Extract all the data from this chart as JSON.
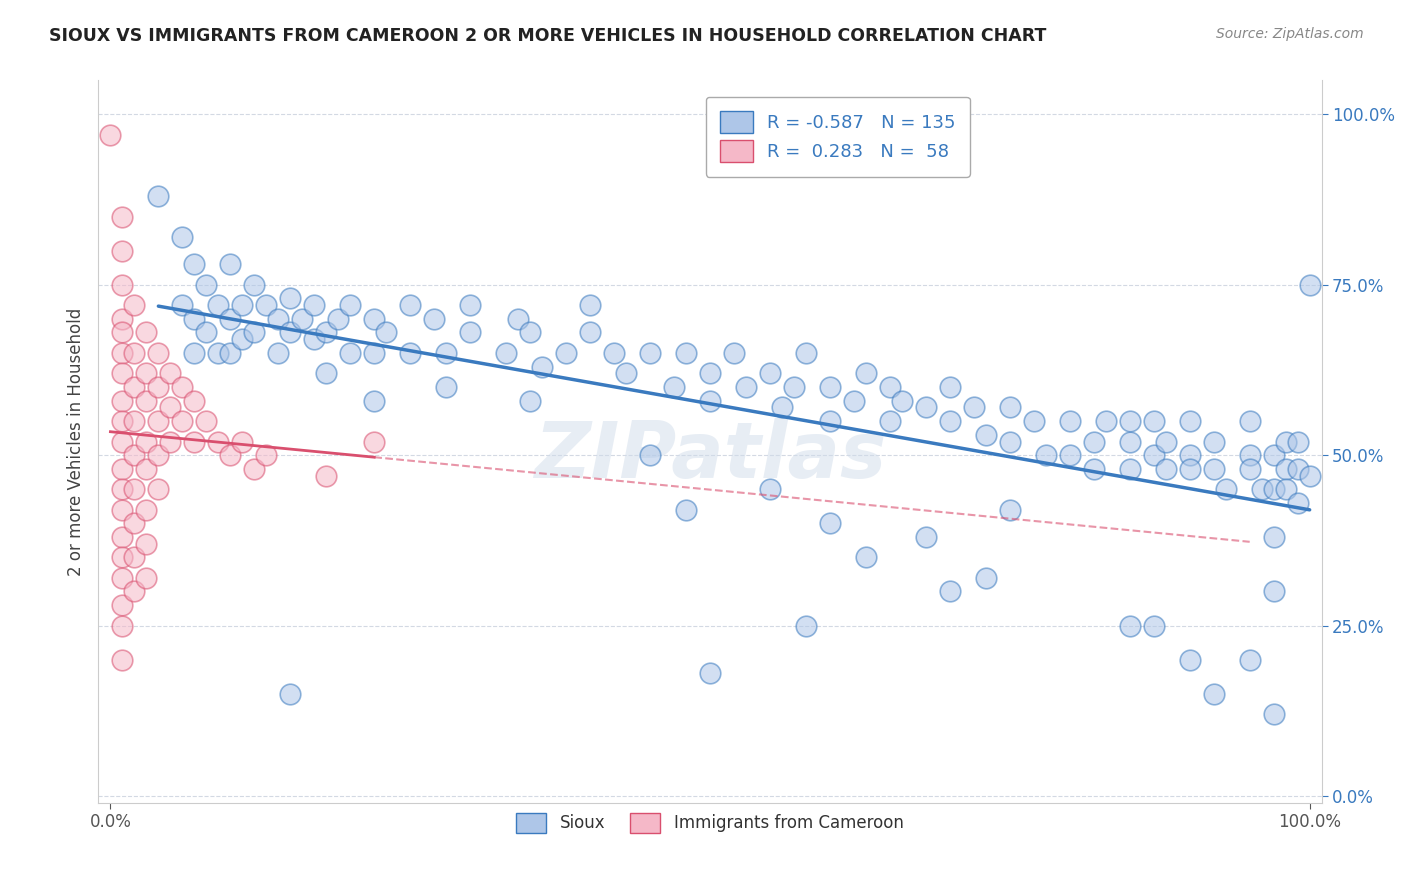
{
  "title": "SIOUX VS IMMIGRANTS FROM CAMEROON 2 OR MORE VEHICLES IN HOUSEHOLD CORRELATION CHART",
  "source": "Source: ZipAtlas.com",
  "ylabel": "2 or more Vehicles in Household",
  "legend_label1": "Sioux",
  "legend_label2": "Immigrants from Cameroon",
  "R1": -0.587,
  "N1": 135,
  "R2": 0.283,
  "N2": 58,
  "color1": "#aec6e8",
  "color2": "#f5b8c8",
  "line_color1": "#3a7abf",
  "line_color2": "#d94f6e",
  "watermark": "ZIPatlas",
  "background_color": "#ffffff",
  "sioux_points": [
    [
      0.04,
      0.88
    ],
    [
      0.06,
      0.82
    ],
    [
      0.06,
      0.72
    ],
    [
      0.07,
      0.78
    ],
    [
      0.07,
      0.7
    ],
    [
      0.07,
      0.65
    ],
    [
      0.08,
      0.75
    ],
    [
      0.08,
      0.68
    ],
    [
      0.09,
      0.72
    ],
    [
      0.09,
      0.65
    ],
    [
      0.1,
      0.78
    ],
    [
      0.1,
      0.7
    ],
    [
      0.1,
      0.65
    ],
    [
      0.11,
      0.72
    ],
    [
      0.11,
      0.67
    ],
    [
      0.12,
      0.75
    ],
    [
      0.12,
      0.68
    ],
    [
      0.13,
      0.72
    ],
    [
      0.14,
      0.7
    ],
    [
      0.14,
      0.65
    ],
    [
      0.15,
      0.73
    ],
    [
      0.15,
      0.68
    ],
    [
      0.16,
      0.7
    ],
    [
      0.17,
      0.72
    ],
    [
      0.17,
      0.67
    ],
    [
      0.18,
      0.68
    ],
    [
      0.19,
      0.7
    ],
    [
      0.2,
      0.65
    ],
    [
      0.2,
      0.72
    ],
    [
      0.22,
      0.7
    ],
    [
      0.22,
      0.65
    ],
    [
      0.23,
      0.68
    ],
    [
      0.25,
      0.72
    ],
    [
      0.25,
      0.65
    ],
    [
      0.27,
      0.7
    ],
    [
      0.28,
      0.65
    ],
    [
      0.3,
      0.68
    ],
    [
      0.3,
      0.72
    ],
    [
      0.33,
      0.65
    ],
    [
      0.34,
      0.7
    ],
    [
      0.35,
      0.68
    ],
    [
      0.36,
      0.63
    ],
    [
      0.38,
      0.65
    ],
    [
      0.4,
      0.68
    ],
    [
      0.4,
      0.72
    ],
    [
      0.42,
      0.65
    ],
    [
      0.43,
      0.62
    ],
    [
      0.45,
      0.65
    ],
    [
      0.47,
      0.6
    ],
    [
      0.48,
      0.65
    ],
    [
      0.5,
      0.62
    ],
    [
      0.5,
      0.58
    ],
    [
      0.52,
      0.65
    ],
    [
      0.53,
      0.6
    ],
    [
      0.55,
      0.62
    ],
    [
      0.56,
      0.57
    ],
    [
      0.57,
      0.6
    ],
    [
      0.58,
      0.65
    ],
    [
      0.6,
      0.6
    ],
    [
      0.6,
      0.55
    ],
    [
      0.62,
      0.58
    ],
    [
      0.63,
      0.62
    ],
    [
      0.65,
      0.6
    ],
    [
      0.65,
      0.55
    ],
    [
      0.66,
      0.58
    ],
    [
      0.68,
      0.57
    ],
    [
      0.7,
      0.6
    ],
    [
      0.7,
      0.55
    ],
    [
      0.72,
      0.57
    ],
    [
      0.73,
      0.53
    ],
    [
      0.75,
      0.57
    ],
    [
      0.75,
      0.52
    ],
    [
      0.77,
      0.55
    ],
    [
      0.78,
      0.5
    ],
    [
      0.8,
      0.55
    ],
    [
      0.8,
      0.5
    ],
    [
      0.82,
      0.52
    ],
    [
      0.82,
      0.48
    ],
    [
      0.83,
      0.55
    ],
    [
      0.85,
      0.52
    ],
    [
      0.85,
      0.48
    ],
    [
      0.85,
      0.55
    ],
    [
      0.87,
      0.5
    ],
    [
      0.87,
      0.55
    ],
    [
      0.88,
      0.52
    ],
    [
      0.88,
      0.48
    ],
    [
      0.9,
      0.5
    ],
    [
      0.9,
      0.55
    ],
    [
      0.9,
      0.48
    ],
    [
      0.92,
      0.52
    ],
    [
      0.92,
      0.48
    ],
    [
      0.93,
      0.45
    ],
    [
      0.95,
      0.5
    ],
    [
      0.95,
      0.48
    ],
    [
      0.95,
      0.55
    ],
    [
      0.96,
      0.45
    ],
    [
      0.97,
      0.5
    ],
    [
      0.97,
      0.45
    ],
    [
      0.97,
      0.3
    ],
    [
      0.98,
      0.48
    ],
    [
      0.98,
      0.45
    ],
    [
      0.98,
      0.52
    ],
    [
      0.99,
      0.48
    ],
    [
      0.99,
      0.43
    ],
    [
      0.99,
      0.52
    ],
    [
      1.0,
      0.47
    ],
    [
      1.0,
      0.75
    ],
    [
      0.15,
      0.15
    ],
    [
      0.5,
      0.18
    ],
    [
      0.58,
      0.25
    ],
    [
      0.63,
      0.35
    ],
    [
      0.7,
      0.3
    ],
    [
      0.85,
      0.25
    ],
    [
      0.87,
      0.25
    ],
    [
      0.9,
      0.2
    ],
    [
      0.92,
      0.15
    ],
    [
      0.95,
      0.2
    ],
    [
      0.97,
      0.12
    ],
    [
      0.97,
      0.38
    ],
    [
      0.68,
      0.38
    ],
    [
      0.73,
      0.32
    ],
    [
      0.75,
      0.42
    ],
    [
      0.55,
      0.45
    ],
    [
      0.6,
      0.4
    ],
    [
      0.45,
      0.5
    ],
    [
      0.48,
      0.42
    ],
    [
      0.35,
      0.58
    ],
    [
      0.28,
      0.6
    ],
    [
      0.18,
      0.62
    ],
    [
      0.22,
      0.58
    ]
  ],
  "cameroon_points": [
    [
      0.0,
      0.97
    ],
    [
      0.01,
      0.85
    ],
    [
      0.01,
      0.8
    ],
    [
      0.01,
      0.75
    ],
    [
      0.01,
      0.7
    ],
    [
      0.01,
      0.68
    ],
    [
      0.01,
      0.65
    ],
    [
      0.01,
      0.62
    ],
    [
      0.01,
      0.58
    ],
    [
      0.01,
      0.55
    ],
    [
      0.01,
      0.52
    ],
    [
      0.01,
      0.48
    ],
    [
      0.01,
      0.45
    ],
    [
      0.01,
      0.42
    ],
    [
      0.01,
      0.38
    ],
    [
      0.01,
      0.35
    ],
    [
      0.01,
      0.32
    ],
    [
      0.01,
      0.28
    ],
    [
      0.01,
      0.25
    ],
    [
      0.01,
      0.2
    ],
    [
      0.02,
      0.72
    ],
    [
      0.02,
      0.65
    ],
    [
      0.02,
      0.6
    ],
    [
      0.02,
      0.55
    ],
    [
      0.02,
      0.5
    ],
    [
      0.02,
      0.45
    ],
    [
      0.02,
      0.4
    ],
    [
      0.02,
      0.35
    ],
    [
      0.02,
      0.3
    ],
    [
      0.03,
      0.68
    ],
    [
      0.03,
      0.62
    ],
    [
      0.03,
      0.58
    ],
    [
      0.03,
      0.52
    ],
    [
      0.03,
      0.48
    ],
    [
      0.03,
      0.42
    ],
    [
      0.03,
      0.37
    ],
    [
      0.03,
      0.32
    ],
    [
      0.04,
      0.65
    ],
    [
      0.04,
      0.6
    ],
    [
      0.04,
      0.55
    ],
    [
      0.04,
      0.5
    ],
    [
      0.04,
      0.45
    ],
    [
      0.05,
      0.62
    ],
    [
      0.05,
      0.57
    ],
    [
      0.05,
      0.52
    ],
    [
      0.06,
      0.6
    ],
    [
      0.06,
      0.55
    ],
    [
      0.07,
      0.58
    ],
    [
      0.07,
      0.52
    ],
    [
      0.08,
      0.55
    ],
    [
      0.09,
      0.52
    ],
    [
      0.1,
      0.5
    ],
    [
      0.11,
      0.52
    ],
    [
      0.12,
      0.48
    ],
    [
      0.13,
      0.5
    ],
    [
      0.18,
      0.47
    ],
    [
      0.22,
      0.52
    ]
  ]
}
